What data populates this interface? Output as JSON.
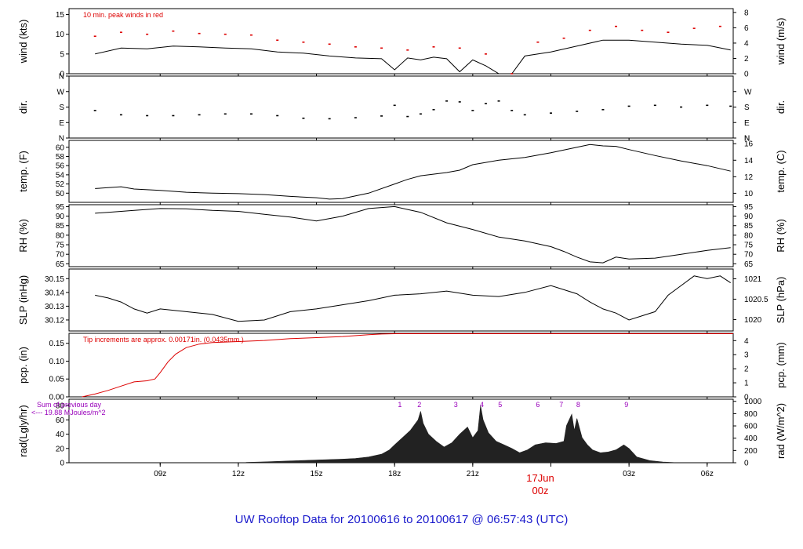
{
  "title": "UW Rooftop Data for 20100616  to  20100617 @ 06:57:43  (UTC)",
  "date_label": "17Jun",
  "date_sub": "00z",
  "colors": {
    "axis": "#000000",
    "red": "#dd0000",
    "purple": "#9900bb",
    "title": "#1a1acc"
  },
  "chart_data": [
    {
      "id": "wind",
      "type": "line",
      "ylabel_left": "wind (kts)",
      "ylabel_right": "wind (m/s)",
      "ylim": [
        0,
        16.5
      ],
      "yticks": [
        0,
        5,
        10,
        15
      ],
      "right_ylim": [
        0,
        8.5
      ],
      "right_yticks": [
        "0",
        "2",
        "4",
        "6",
        "8"
      ],
      "annotation": "10 min. peak winds in red",
      "series": [
        {
          "style": "line",
          "color": "#000000",
          "x": [
            6.5,
            7.5,
            8.5,
            9.5,
            10.5,
            11.5,
            12.5,
            13.5,
            14.5,
            15.5,
            16.5,
            17.5,
            18.0,
            18.5,
            19.0,
            19.5,
            20.0,
            20.5,
            21.0,
            21.5,
            22.0,
            22.5,
            23.0,
            24.0,
            25.0,
            26.0,
            27.0,
            28.0,
            29.0,
            30.0,
            30.9
          ],
          "y": [
            5,
            6.5,
            6.3,
            7,
            6.8,
            6.5,
            6.3,
            5.5,
            5.2,
            4.5,
            4,
            3.8,
            1,
            4,
            3.5,
            4.2,
            3.8,
            0.5,
            3.5,
            2,
            0,
            0,
            4.5,
            5.5,
            7,
            8.5,
            8.5,
            8,
            7.5,
            7.2,
            6
          ]
        },
        {
          "style": "points",
          "color": "#dd0000",
          "x": [
            6.5,
            7.5,
            8.5,
            9.5,
            10.5,
            11.5,
            12.5,
            13.5,
            14.5,
            15.5,
            16.5,
            17.5,
            18.5,
            19.5,
            20.5,
            21.5,
            22.5,
            23.5,
            24.5,
            25.5,
            26.5,
            27.5,
            28.5,
            29.5,
            30.5
          ],
          "y": [
            9.5,
            10.5,
            10,
            10.8,
            10.2,
            10,
            9.8,
            8.5,
            8,
            7.5,
            6.8,
            6.5,
            6,
            6.8,
            6.5,
            5,
            0,
            8,
            9,
            11,
            12,
            11,
            10.5,
            11.5,
            12
          ]
        }
      ]
    },
    {
      "id": "dir",
      "type": "scatter",
      "ylabel_left": "dir.",
      "ylabel_right": "dir.",
      "ylim": [
        0,
        360
      ],
      "yticks": [
        0,
        90,
        180,
        270,
        360
      ],
      "ytick_labels": [
        "N",
        "E",
        "S",
        "W",
        "N"
      ],
      "right_ylim": [
        0,
        360
      ],
      "right_yticks": [
        "N",
        "E",
        "S",
        "W",
        "N"
      ],
      "series": [
        {
          "style": "points",
          "color": "#000000",
          "x": [
            6.5,
            7.5,
            8.5,
            9.5,
            10.5,
            11.5,
            12.5,
            13.5,
            14.5,
            15.5,
            16.5,
            17.5,
            18.0,
            18.5,
            19.0,
            19.5,
            20.0,
            20.5,
            21.0,
            21.5,
            22.0,
            22.5,
            23.0,
            24.0,
            25.0,
            26.0,
            27.0,
            28.0,
            29.0,
            30.0,
            30.9
          ],
          "y": [
            160,
            135,
            130,
            130,
            135,
            140,
            140,
            130,
            115,
            112,
            118,
            128,
            190,
            125,
            140,
            165,
            215,
            210,
            160,
            200,
            215,
            160,
            135,
            145,
            155,
            165,
            185,
            190,
            180,
            190,
            185
          ]
        }
      ]
    },
    {
      "id": "temp",
      "type": "line",
      "ylabel_left": "temp. (F)",
      "ylabel_right": "temp. (C)",
      "ylim": [
        48,
        61.5
      ],
      "yticks": [
        50,
        52,
        54,
        56,
        58,
        60
      ],
      "right_ylim": [
        8.9,
        16.4
      ],
      "right_yticks": [
        "10",
        "12",
        "14",
        "16"
      ],
      "series": [
        {
          "style": "line",
          "color": "#000000",
          "x": [
            6.5,
            7.0,
            7.5,
            8.0,
            9.0,
            10.0,
            11.0,
            12.0,
            13.0,
            14.0,
            15.0,
            15.5,
            16.0,
            17.0,
            18.0,
            18.5,
            19.0,
            20.0,
            20.5,
            21.0,
            22.0,
            23.0,
            24.0,
            25.0,
            25.5,
            26.0,
            26.5,
            27.0,
            28.0,
            29.0,
            30.0,
            30.9
          ],
          "y": [
            51,
            51.2,
            51.4,
            50.9,
            50.6,
            50.2,
            50,
            49.9,
            49.7,
            49.3,
            49,
            48.7,
            48.8,
            50,
            52,
            53,
            53.8,
            54.5,
            55,
            56.2,
            57.2,
            57.8,
            58.8,
            60,
            60.6,
            60.3,
            60.2,
            59.5,
            58.2,
            57,
            56,
            54.8
          ]
        }
      ]
    },
    {
      "id": "rh",
      "type": "line",
      "ylabel_left": "RH (%)",
      "ylabel_right": "RH (%)",
      "ylim": [
        63.5,
        96
      ],
      "yticks": [
        65,
        70,
        75,
        80,
        85,
        90,
        95
      ],
      "right_ylim": [
        63.5,
        96
      ],
      "right_yticks": [
        "65",
        "70",
        "75",
        "80",
        "85",
        "90",
        "95"
      ],
      "series": [
        {
          "style": "line",
          "color": "#000000",
          "x": [
            6.5,
            7.0,
            8.0,
            9.0,
            10.0,
            11.0,
            12.0,
            13.0,
            14.0,
            15.0,
            16.0,
            17.0,
            18.0,
            18.5,
            19.0,
            20.0,
            21.0,
            22.0,
            23.0,
            24.0,
            24.5,
            25.0,
            25.5,
            26.0,
            26.5,
            27.0,
            28.0,
            29.0,
            30.0,
            30.9
          ],
          "y": [
            91.5,
            92,
            93,
            94,
            93.8,
            93,
            92.5,
            91,
            89.5,
            87.5,
            90,
            94,
            95,
            93.5,
            92,
            86.5,
            83,
            79,
            77,
            74,
            71.5,
            68.5,
            66,
            65.5,
            68.5,
            67.5,
            68,
            70,
            72,
            73.5
          ]
        }
      ]
    },
    {
      "id": "slp",
      "type": "line",
      "ylabel_left": "SLP (inHg)",
      "ylabel_right": "SLP (hPa)",
      "ylim": [
        30.112,
        30.157
      ],
      "yticks": [
        30.12,
        30.13,
        30.14,
        30.15
      ],
      "ytick_labels": [
        "30.12",
        "30.13",
        "30.14",
        "30.15"
      ],
      "right_ylim": [
        1019.72,
        1021.24
      ],
      "right_yticks": [
        "1020",
        "1020.5",
        "1021"
      ],
      "series": [
        {
          "style": "line",
          "color": "#000000",
          "x": [
            6.5,
            7.0,
            7.5,
            8.0,
            8.5,
            9.0,
            10.0,
            11.0,
            12.0,
            13.0,
            14.0,
            15.0,
            16.0,
            17.0,
            18.0,
            19.0,
            20.0,
            21.0,
            22.0,
            23.0,
            24.0,
            25.0,
            25.5,
            26.0,
            26.5,
            27.0,
            28.0,
            28.5,
            29.0,
            29.5,
            30.0,
            30.5,
            30.9
          ],
          "y": [
            30.138,
            30.136,
            30.133,
            30.128,
            30.125,
            30.128,
            30.126,
            30.124,
            30.119,
            30.12,
            30.126,
            30.128,
            30.131,
            30.134,
            30.138,
            30.139,
            30.141,
            30.138,
            30.137,
            30.14,
            30.145,
            30.139,
            30.133,
            30.128,
            30.125,
            30.12,
            30.126,
            30.138,
            30.145,
            30.152,
            30.15,
            30.152,
            30.147
          ]
        }
      ]
    },
    {
      "id": "pcp",
      "type": "area",
      "ylabel_left": "pcp. (in)",
      "ylabel_right": "pcp. (mm)",
      "ylim": [
        0,
        0.178
      ],
      "yticks": [
        0,
        0.05,
        0.1,
        0.15
      ],
      "ytick_labels": [
        "0.00",
        "0.05",
        "0.10",
        "0.15"
      ],
      "right_ylim": [
        0,
        4.52
      ],
      "right_yticks": [
        "0",
        "1",
        "2",
        "3",
        "4"
      ],
      "annotation": "Tip increments are approx. 0.00171in. (0.0435mm.)",
      "series": [
        {
          "style": "line",
          "color": "#dd0000",
          "x": [
            6.0,
            6.5,
            7.0,
            7.5,
            8.0,
            8.5,
            8.8,
            9.0,
            9.3,
            9.6,
            10.0,
            10.5,
            11.0,
            12.0,
            13.0,
            14.0,
            15.0,
            16.0,
            17.0,
            17.5,
            18.0,
            31.0
          ],
          "y": [
            0,
            0.008,
            0.018,
            0.03,
            0.042,
            0.045,
            0.05,
            0.068,
            0.098,
            0.12,
            0.138,
            0.148,
            0.152,
            0.155,
            0.158,
            0.163,
            0.166,
            0.169,
            0.174,
            0.176,
            0.177,
            0.177
          ]
        }
      ]
    },
    {
      "id": "rad",
      "type": "area",
      "ylabel_left": "rad(Lgly/hr)",
      "ylabel_right": "rad (W/m^2)",
      "ylim": [
        0,
        89
      ],
      "yticks": [
        0,
        20,
        40,
        60,
        80
      ],
      "right_ylim": [
        0,
        1035
      ],
      "right_yticks": [
        "0",
        "200",
        "400",
        "600",
        "800",
        "1000"
      ],
      "annotation_lines": [
        "Sum of previous day",
        "<--- 19.88 MJoules/m^2"
      ],
      "peak_labels": [
        "1",
        "2",
        "3",
        "4",
        "5",
        "6",
        "7",
        "8",
        "9"
      ],
      "peak_x": [
        18.2,
        18.95,
        20.35,
        21.35,
        22.05,
        23.5,
        24.4,
        25.05,
        26.9
      ],
      "series": [
        {
          "style": "area",
          "color": "#222222",
          "x": [
            12.3,
            13.0,
            14.0,
            15.0,
            16.0,
            16.5,
            17.0,
            17.5,
            17.8,
            18.0,
            18.3,
            18.6,
            18.9,
            19.0,
            19.1,
            19.3,
            19.6,
            19.9,
            20.2,
            20.5,
            20.8,
            21.0,
            21.2,
            21.3,
            21.4,
            21.6,
            21.9,
            22.2,
            22.5,
            22.8,
            23.1,
            23.4,
            23.8,
            24.2,
            24.5,
            24.6,
            24.8,
            24.9,
            25.0,
            25.2,
            25.4,
            25.6,
            25.9,
            26.2,
            26.5,
            26.8,
            27.0,
            27.3,
            27.8,
            28.3,
            28.7
          ],
          "y": [
            0.5,
            1.2,
            2.5,
            3.8,
            5,
            6,
            8,
            12,
            18,
            25,
            35,
            45,
            60,
            72,
            55,
            40,
            30,
            22,
            28,
            40,
            50,
            35,
            45,
            80,
            60,
            42,
            30,
            25,
            20,
            14,
            18,
            25,
            28,
            27,
            30,
            52,
            68,
            45,
            62,
            35,
            25,
            18,
            14,
            15,
            18,
            25,
            20,
            8,
            3,
            1,
            0.3
          ]
        }
      ]
    }
  ],
  "xaxis": {
    "range": [
      5.5,
      31.0
    ],
    "ticks": [
      9,
      12,
      15,
      18,
      21,
      24,
      27,
      30
    ],
    "tick_labels": [
      "09z",
      "12z",
      "15z",
      "18z",
      "21z",
      "",
      "03z",
      "06z"
    ]
  }
}
